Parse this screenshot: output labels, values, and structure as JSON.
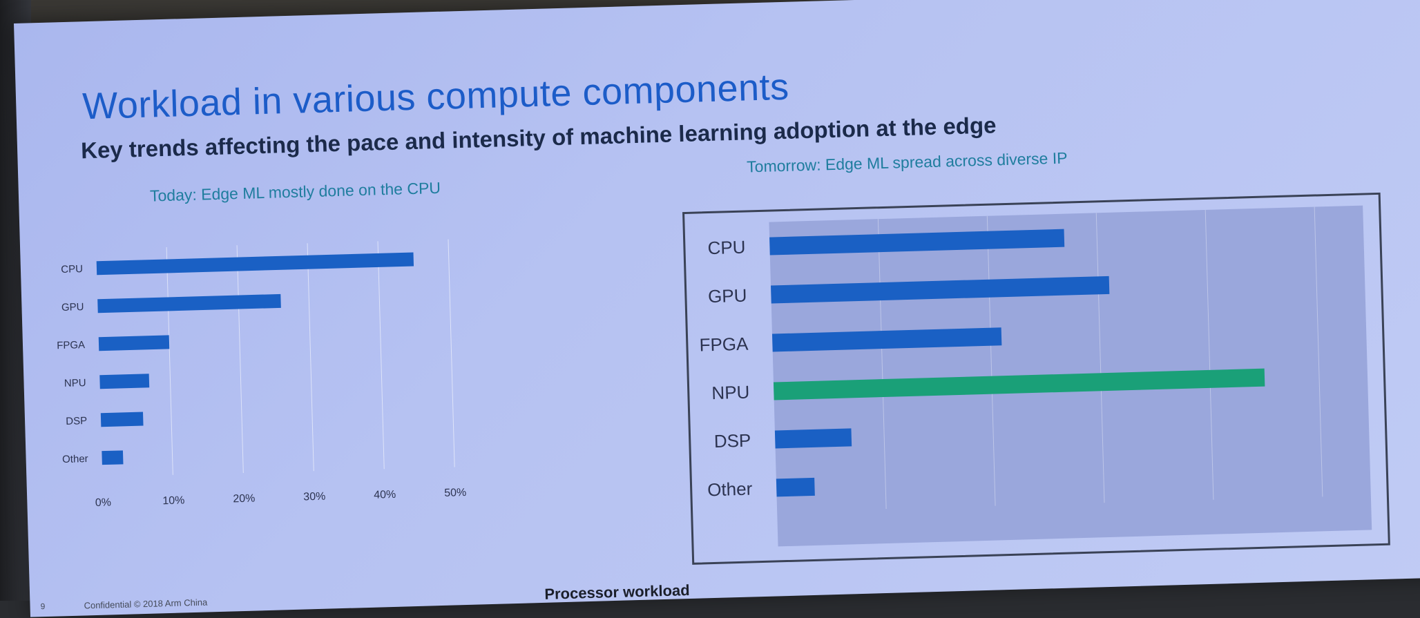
{
  "slide": {
    "title": "Workload in various compute components",
    "subtitle": "Key trends affecting the pace and intensity of machine learning adoption at the edge",
    "footer_page": "9",
    "footer_confidential": "Confidential © 2018 Arm China",
    "footer_label": "Processor workload"
  },
  "chart_data": [
    {
      "type": "bar",
      "orientation": "horizontal",
      "title": "Today: Edge ML mostly done on the CPU",
      "categories": [
        "CPU",
        "GPU",
        "FPGA",
        "NPU",
        "DSP",
        "Other"
      ],
      "values": [
        45,
        26,
        10,
        7,
        6,
        3
      ],
      "xlim": [
        0,
        50
      ],
      "xticks": [
        "0%",
        "10%",
        "20%",
        "30%",
        "40%",
        "50%"
      ],
      "grid": true,
      "bar_color": "#1a60c4"
    },
    {
      "type": "bar",
      "orientation": "horizontal",
      "title": "Tomorrow: Edge ML spread across diverse IP",
      "categories": [
        "CPU",
        "GPU",
        "FPGA",
        "NPU",
        "DSP",
        "Other"
      ],
      "values": [
        27,
        31,
        21,
        45,
        7,
        3.5
      ],
      "xlim": [
        0,
        50
      ],
      "grid": true,
      "bar_color": "#1a60c4",
      "highlight": {
        "category": "NPU",
        "color": "#1aa078"
      }
    }
  ]
}
